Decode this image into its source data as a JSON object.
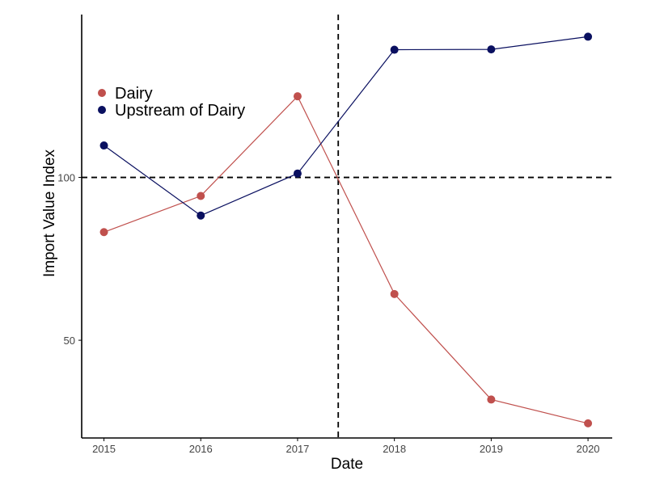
{
  "chart_data": {
    "type": "line",
    "title": "",
    "xlabel": "Date",
    "ylabel": "Import Value Index",
    "x": [
      2015,
      2016,
      2017,
      2018,
      2019,
      2020
    ],
    "x_tick_labels": [
      "2015",
      "2016",
      "2017",
      "2018",
      "2019",
      "2020"
    ],
    "y_ticks": [
      50,
      100
    ],
    "y_tick_labels": [
      "50",
      "100"
    ],
    "ylim": [
      20,
      150
    ],
    "xlim": [
      2014.77,
      2020.25
    ],
    "grid": false,
    "legend_position": "top-left",
    "reference_lines": {
      "horizontal_y": 100,
      "vertical_x": 2017.42
    },
    "series": [
      {
        "name": "Dairy",
        "color": "#c0504d",
        "values": [
          83.2,
          94.3,
          124.9,
          64.2,
          31.8,
          24.5
        ]
      },
      {
        "name": "Upstream of Dairy",
        "color": "#0a1060",
        "values": [
          109.8,
          88.3,
          101.2,
          139.2,
          139.3,
          143.2
        ]
      }
    ]
  }
}
